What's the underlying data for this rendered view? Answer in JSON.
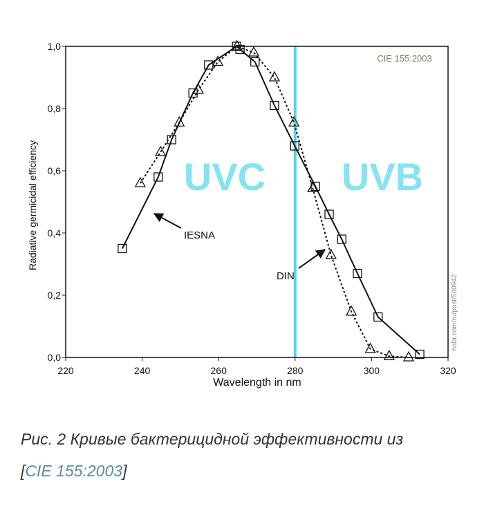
{
  "chart_data": {
    "type": "line",
    "xlabel": "Wavelength in nm",
    "ylabel": "Radiative germicidal efficiency",
    "xlim": [
      220,
      320
    ],
    "xticks": [
      220,
      240,
      260,
      280,
      300,
      320
    ],
    "ylim": [
      0,
      1
    ],
    "yticks": [
      {
        "value": 0,
        "label": "0,0"
      },
      {
        "value": 0.2,
        "label": "0,2"
      },
      {
        "value": 0.4,
        "label": "0,4"
      },
      {
        "value": 0.6,
        "label": "0,6"
      },
      {
        "value": 0.8,
        "label": "0,8"
      },
      {
        "value": 1,
        "label": "1,0"
      }
    ],
    "grid": false,
    "series": [
      {
        "name": "IESNA",
        "color": "#111111",
        "marker": "square",
        "dash": "none",
        "x": [
          234.8,
          244.2,
          247.7,
          253.3,
          257.4,
          264.7,
          265.6,
          269.5,
          274.6,
          279.9,
          285.3,
          288.9,
          292.2,
          296.3,
          301.7,
          312.6
        ],
        "values": [
          0.35,
          0.58,
          0.7,
          0.85,
          0.94,
          1.0,
          0.99,
          0.95,
          0.81,
          0.68,
          0.55,
          0.46,
          0.38,
          0.27,
          0.13,
          0.01
        ]
      },
      {
        "name": "DIN",
        "color": "#111111",
        "marker": "triangle",
        "dash": "3,3",
        "x": [
          239.5,
          244.8,
          249.7,
          254.7,
          259.8,
          264.8,
          269.2,
          274.6,
          279.7,
          284.6,
          289.4,
          294.7,
          299.7,
          304.6,
          309.7
        ],
        "values": [
          0.56,
          0.66,
          0.755,
          0.86,
          0.95,
          1.0,
          0.98,
          0.9,
          0.755,
          0.544,
          0.329,
          0.147,
          0.027,
          0.004,
          0.0
        ]
      }
    ],
    "vline": {
      "x": 280,
      "color": "#4fd6ea"
    },
    "annotations": {
      "uvc": "UVC",
      "uvb": "UVB",
      "source": "CIE 155:2003",
      "watermark": "habr.com/ru/post/500942"
    }
  },
  "caption": {
    "text": "Рис. 2 Кривые бактерицидной эффективности из",
    "open": "[",
    "link": "CIE 155:2003",
    "close": "]"
  }
}
